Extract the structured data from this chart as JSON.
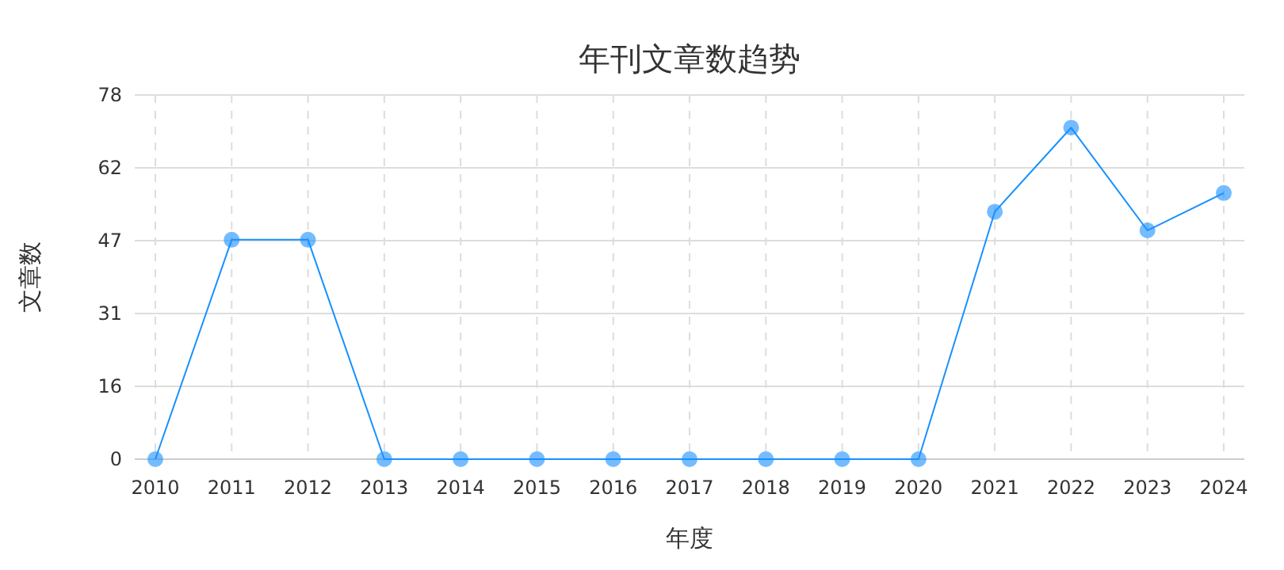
{
  "chart_data": {
    "type": "line",
    "title": "年刊文章数趋势",
    "xlabel": "年度",
    "ylabel": "文章数",
    "categories": [
      "2010",
      "2011",
      "2012",
      "2013",
      "2014",
      "2015",
      "2016",
      "2017",
      "2018",
      "2019",
      "2020",
      "2021",
      "2022",
      "2023",
      "2024"
    ],
    "series": [
      {
        "color": "#1890ff",
        "values": [
          0,
          47,
          47,
          0,
          0,
          0,
          0,
          0,
          0,
          0,
          0,
          53,
          71,
          49,
          57
        ]
      }
    ],
    "ylim": [
      0,
      78
    ],
    "yticks": [
      0,
      {
        "value": 15.6,
        "label": "16"
      },
      {
        "value": 31.2,
        "label": "31"
      },
      {
        "value": 46.8,
        "label": "47"
      },
      {
        "value": 62.4,
        "label": "62"
      },
      78
    ],
    "grid": true,
    "marker": "circle",
    "line_style": "solid"
  }
}
